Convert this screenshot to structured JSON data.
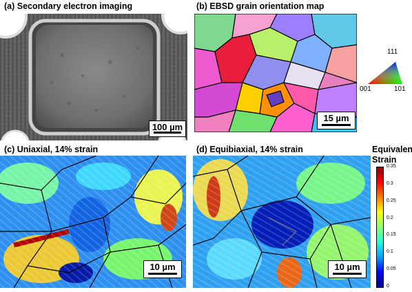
{
  "panels": {
    "a": {
      "title": "(a) Secondary electron imaging",
      "scale": "100 µm"
    },
    "b": {
      "title": "(b) EBSD grain orientation map",
      "scale": "15 µm",
      "ipf": {
        "top": "111",
        "left": "001",
        "right": "101"
      }
    },
    "c": {
      "title": "(c) Uniaxial, 14% strain",
      "scale": "10 µm"
    },
    "d": {
      "title": "(d) Equibiaxial, 14% strain",
      "scale": "10 µm"
    }
  },
  "colorbar": {
    "title_line1": "Equivalent",
    "title_line2": "Strain",
    "ticks": [
      "0.35",
      "0.3",
      "0.25",
      "0.2",
      "0.15",
      "0.1",
      "0.05",
      "0"
    ],
    "range": [
      0,
      0.35
    ],
    "colors": [
      "#00008f",
      "#0000ff",
      "#00a0ff",
      "#20ffdf",
      "#8fff70",
      "#ffff00",
      "#ff8000",
      "#ff0000",
      "#8f0000"
    ]
  }
}
